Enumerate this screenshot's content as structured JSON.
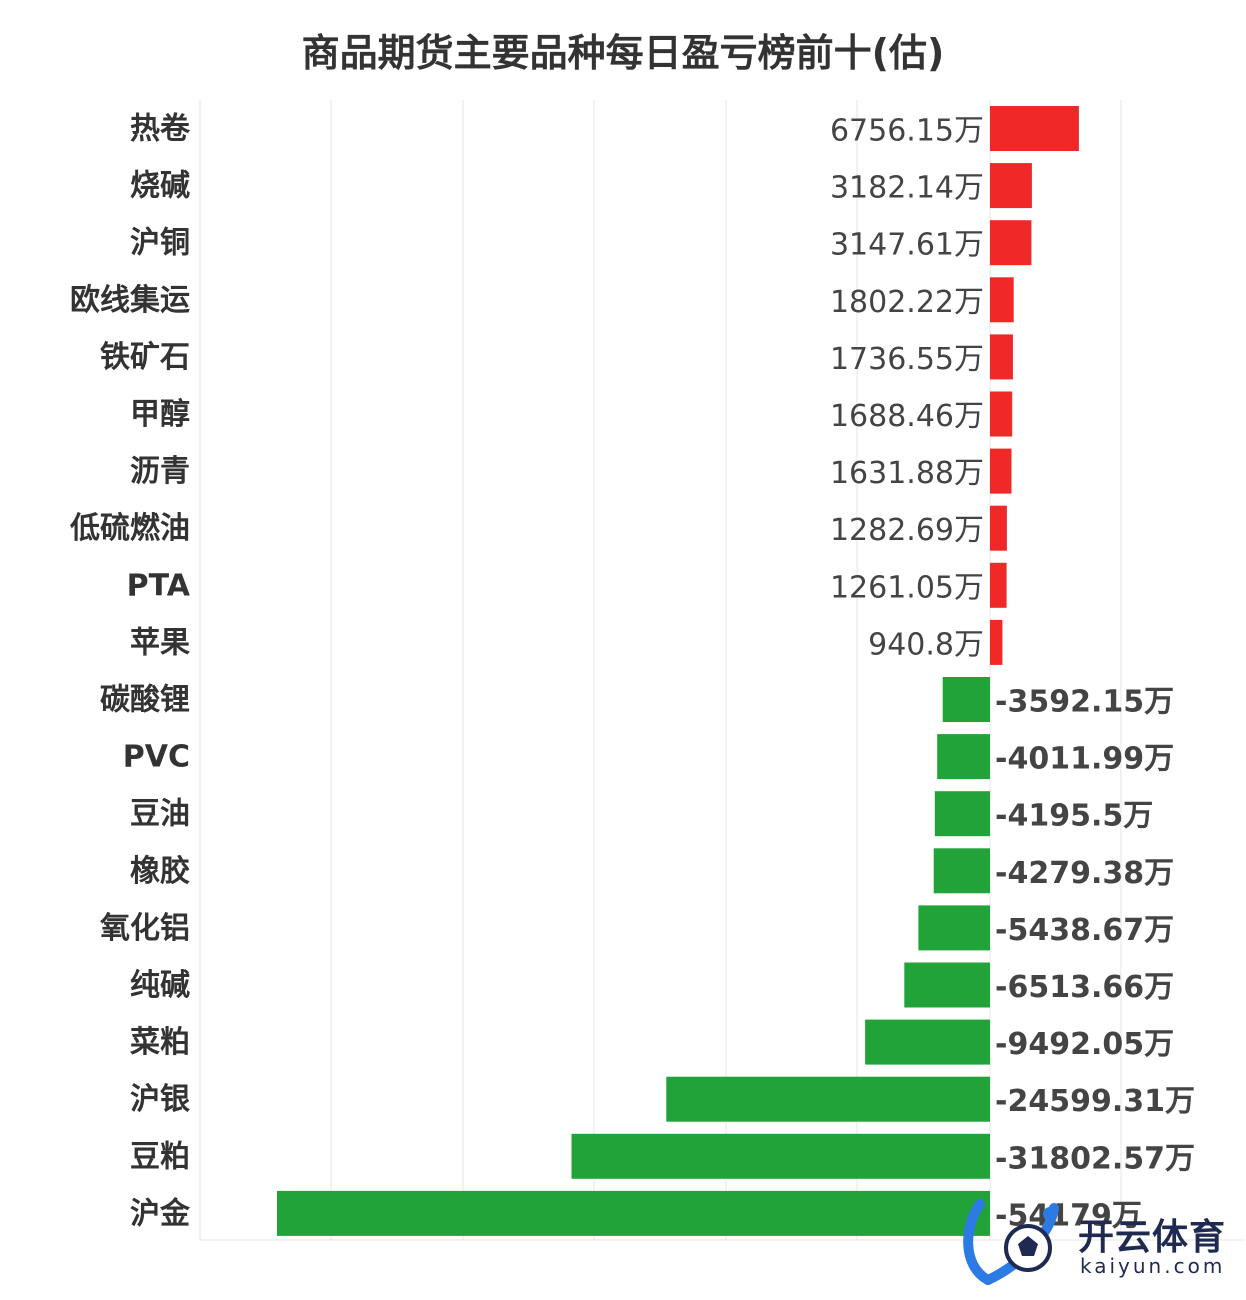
{
  "chart_data": {
    "type": "bar",
    "orientation": "horizontal",
    "title": "商品期货主要品种每日盈亏榜前十(估)",
    "categories": [
      "热卷",
      "烧碱",
      "沪铜",
      "欧线集运",
      "铁矿石",
      "甲醇",
      "沥青",
      "低硫燃油",
      "PTA",
      "苹果",
      "碳酸锂",
      "PVC",
      "豆油",
      "橡胶",
      "氧化铝",
      "纯碱",
      "菜粕",
      "沪银",
      "豆粕",
      "沪金"
    ],
    "values": [
      6756.15,
      3182.14,
      3147.61,
      1802.22,
      1736.55,
      1688.46,
      1631.88,
      1282.69,
      1261.05,
      940.8,
      -3592.15,
      -4011.99,
      -4195.5,
      -4279.38,
      -5438.67,
      -6513.66,
      -9492.05,
      -24599.31,
      -31802.57,
      -54179
    ],
    "value_labels": [
      "6756.15万",
      "3182.14万",
      "3147.61万",
      "1802.22万",
      "1736.55万",
      "1688.46万",
      "1631.88万",
      "1282.69万",
      "1261.05万",
      "940.8万",
      "-3592.15万",
      "-4011.99万",
      "-4195.5万",
      "-4279.38万",
      "-5438.67万",
      "-6513.66万",
      "-9492.05万",
      "-24599.31万",
      "-31802.57万",
      "-54179万"
    ],
    "unit": "万",
    "grid": "vertical",
    "colors": {
      "positive": "#f02828",
      "negative": "#22a33a"
    }
  },
  "watermark": {
    "name": "开云体育",
    "url": "kaiyun.com"
  }
}
